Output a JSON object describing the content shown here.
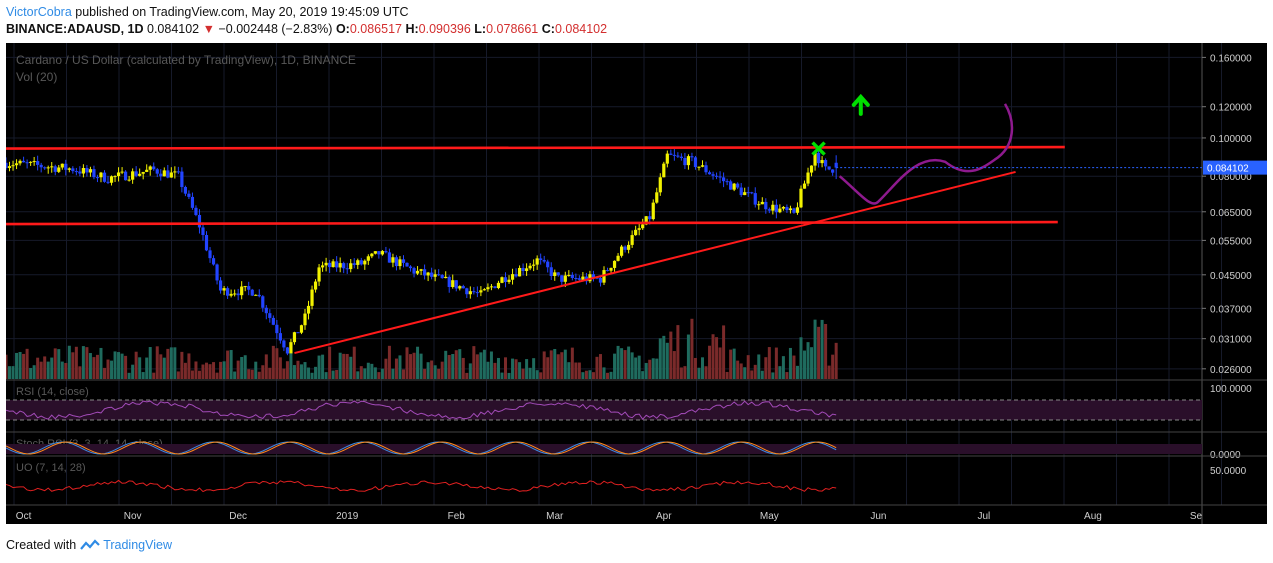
{
  "header": {
    "author": "VictorCobra",
    "published": "published on TradingView.com, May 20, 2019 19:45:09 UTC",
    "symbol": "BINANCE:ADAUSD, 1D",
    "last": "0.084102",
    "change_arrow": "▼",
    "change": "−0.002448 (−2.83%)",
    "o_label": "O:",
    "o_val": "0.086517",
    "h_label": "H:",
    "h_val": "0.090396",
    "l_label": "L:",
    "l_val": "0.078661",
    "c_label": "C:",
    "c_val": "0.084102"
  },
  "footer": {
    "created_with": "Created with",
    "brand": "TradingView"
  },
  "colors": {
    "up": "#f2f200",
    "down": "#2244ff",
    "vol_up": "#1f6b5e",
    "vol_down": "#7a2a2a",
    "trendline": "#ff1a1a",
    "projection": "#8e1a8e",
    "arrow": "#00e000",
    "x_mark": "#00e000",
    "last_price_tag": "#2962ff"
  },
  "chart_data": {
    "type": "candlestick",
    "title": "Cardano / US Dollar (calculated by TradingView), 1D, BINANCE",
    "volume_label": "Vol (20)",
    "yscale": "log",
    "ylim": [
      0.0245,
      0.172
    ],
    "y_ticks": [
      "0.160000",
      "0.120000",
      "0.100000",
      "0.080000",
      "0.065000",
      "0.055000",
      "0.045000",
      "0.037000",
      "0.031000",
      "0.026000"
    ],
    "last_price": "0.084102",
    "x_ticks": [
      "Oct",
      "Nov",
      "Dec",
      "2019",
      "Feb",
      "Mar",
      "Apr",
      "May",
      "Jun",
      "Jul",
      "Aug",
      "Se"
    ],
    "date_range": [
      "2018-09-26",
      "2019-05-20"
    ],
    "close_anchors": [
      [
        "2018-09-26",
        0.0865
      ],
      [
        "2018-10-15",
        0.0835
      ],
      [
        "2018-10-25",
        0.079
      ],
      [
        "2018-11-07",
        0.083
      ],
      [
        "2018-11-14",
        0.08
      ],
      [
        "2018-11-20",
        0.06
      ],
      [
        "2018-11-26",
        0.041
      ],
      [
        "2018-12-06",
        0.041
      ],
      [
        "2018-12-15",
        0.029
      ],
      [
        "2018-12-20",
        0.035
      ],
      [
        "2018-12-24",
        0.047
      ],
      [
        "2019-01-05",
        0.048
      ],
      [
        "2019-01-10",
        0.051
      ],
      [
        "2019-01-20",
        0.046
      ],
      [
        "2019-01-30",
        0.043
      ],
      [
        "2019-02-08",
        0.04
      ],
      [
        "2019-02-14",
        0.044
      ],
      [
        "2019-02-24",
        0.049
      ],
      [
        "2019-03-02",
        0.044
      ],
      [
        "2019-03-14",
        0.044
      ],
      [
        "2019-03-20",
        0.052
      ],
      [
        "2019-03-28",
        0.063
      ],
      [
        "2019-04-02",
        0.09
      ],
      [
        "2019-04-09",
        0.087
      ],
      [
        "2019-04-20",
        0.076
      ],
      [
        "2019-04-29",
        0.068
      ],
      [
        "2019-05-08",
        0.064
      ],
      [
        "2019-05-14",
        0.092
      ],
      [
        "2019-05-17",
        0.083
      ],
      [
        "2019-05-20",
        0.0841
      ]
    ],
    "volume_ylim": [
      0,
      1
    ],
    "indicators": [
      {
        "label": "RSI (14, close)",
        "right_label": "100.0000"
      },
      {
        "label": "Stoch RSI (3, 3, 14, 14, close)",
        "right_label": "0.0000"
      },
      {
        "label": "UO (7, 14, 28)",
        "right_label": "50.0000"
      }
    ],
    "drawings": {
      "resistance": {
        "from": [
          "2018-09-26",
          0.094
        ],
        "to": [
          "2019-07-24",
          0.0948
        ]
      },
      "support": {
        "from": [
          "2018-09-26",
          0.0605
        ],
        "to": [
          "2019-07-22",
          0.0612
        ]
      },
      "ascending_trendline": {
        "from": [
          "2018-12-17",
          0.0285
        ],
        "to": [
          "2019-07-10",
          0.082
        ]
      }
    }
  }
}
